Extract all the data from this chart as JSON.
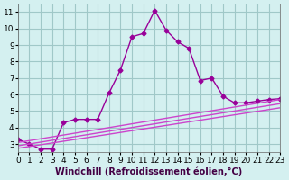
{
  "title": "",
  "xlabel": "Windchill (Refroidissement éolien,°C)",
  "background_color": "#d4f0f0",
  "grid_color": "#a0c8c8",
  "line_color": "#990099",
  "line_color2": "#cc44cc",
  "xlim": [
    0,
    23
  ],
  "ylim": [
    2.5,
    11.5
  ],
  "xticks": [
    0,
    1,
    2,
    3,
    4,
    5,
    6,
    7,
    8,
    9,
    10,
    11,
    12,
    13,
    14,
    15,
    16,
    17,
    18,
    19,
    20,
    21,
    22,
    23
  ],
  "yticks": [
    3,
    4,
    5,
    6,
    7,
    8,
    9,
    10,
    11
  ],
  "series1_x": [
    0,
    1,
    2,
    3,
    4,
    5,
    6,
    7,
    8,
    9,
    10,
    11,
    12,
    13,
    14,
    15,
    16,
    17,
    18,
    19,
    20,
    21,
    22,
    23
  ],
  "series1_y": [
    3.3,
    3.0,
    2.7,
    2.7,
    4.3,
    4.5,
    4.5,
    4.5,
    6.1,
    7.5,
    9.5,
    9.7,
    11.1,
    9.9,
    9.2,
    8.8,
    6.85,
    7.0,
    5.9,
    5.5,
    5.5,
    5.6,
    5.7,
    5.75
  ],
  "series2_x": [
    0,
    23
  ],
  "series2_y": [
    3.1,
    5.7
  ],
  "series3_x": [
    0,
    23
  ],
  "series3_y": [
    2.9,
    5.45
  ],
  "series4_x": [
    0,
    23
  ],
  "series4_y": [
    2.75,
    5.2
  ],
  "marker": "D",
  "markersize": 2.5,
  "linewidth": 1.0,
  "xlabel_fontsize": 7,
  "tick_fontsize": 6.5
}
